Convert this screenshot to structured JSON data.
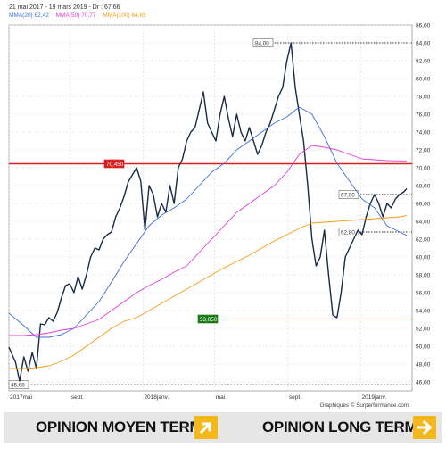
{
  "header": {
    "date_range": "21 mai 2017 - 19 mars 2019 - Dr : 67.66",
    "ma_legend": [
      {
        "name": "MMA(20)",
        "value": "62,42",
        "color": "#3b6fd8"
      },
      {
        "name": "MMA(50)",
        "value": "70,77",
        "color": "#e03fd6"
      },
      {
        "name": "MMA(100)",
        "value": "64,65",
        "color": "#f29d1a"
      }
    ]
  },
  "chart_data": {
    "type": "line",
    "ylim": [
      45,
      86
    ],
    "y_ticks": [
      "46,00",
      "48,00",
      "50,00",
      "52,00",
      "54,00",
      "56,00",
      "58,00",
      "60,00",
      "62,00",
      "64,00",
      "66,00",
      "68,00",
      "70,00",
      "72,00",
      "74,00",
      "76,00",
      "78,00",
      "80,00",
      "82,00",
      "84,00",
      "86,00"
    ],
    "y_tick_values": [
      46,
      48,
      50,
      52,
      54,
      56,
      58,
      60,
      62,
      64,
      66,
      68,
      70,
      72,
      74,
      76,
      78,
      80,
      82,
      84,
      86
    ],
    "x_ticks": [
      {
        "label": "2017mai",
        "date": "2017-05-21"
      },
      {
        "label": "sept.",
        "date": "2017-09-01"
      },
      {
        "label": "2018janv.",
        "date": "2018-01-01"
      },
      {
        "label": "mai",
        "date": "2018-05-01"
      },
      {
        "label": "sept.",
        "date": "2018-09-01"
      },
      {
        "label": "2019janv.",
        "date": "2019-01-01"
      }
    ],
    "x_range": [
      "2017-05-21",
      "2019-03-19"
    ],
    "grid": true,
    "series": [
      {
        "name": "Dr",
        "color": "#1a2a44",
        "x": [
          "2017-05-21",
          "2017-06-01",
          "2017-06-08",
          "2017-06-15",
          "2017-06-22",
          "2017-06-29",
          "2017-07-06",
          "2017-07-13",
          "2017-07-20",
          "2017-07-27",
          "2017-08-03",
          "2017-08-10",
          "2017-08-17",
          "2017-08-24",
          "2017-08-31",
          "2017-09-07",
          "2017-09-14",
          "2017-09-21",
          "2017-09-28",
          "2017-10-05",
          "2017-10-12",
          "2017-10-19",
          "2017-10-26",
          "2017-11-02",
          "2017-11-09",
          "2017-11-16",
          "2017-11-23",
          "2017-11-30",
          "2017-12-07",
          "2017-12-14",
          "2017-12-21",
          "2017-12-28",
          "2018-01-04",
          "2018-01-11",
          "2018-01-18",
          "2018-01-25",
          "2018-02-01",
          "2018-02-08",
          "2018-02-15",
          "2018-02-22",
          "2018-03-01",
          "2018-03-08",
          "2018-03-15",
          "2018-03-22",
          "2018-03-29",
          "2018-04-05",
          "2018-04-12",
          "2018-04-19",
          "2018-04-26",
          "2018-05-03",
          "2018-05-10",
          "2018-05-17",
          "2018-05-24",
          "2018-05-31",
          "2018-06-07",
          "2018-06-14",
          "2018-06-21",
          "2018-06-28",
          "2018-07-05",
          "2018-07-12",
          "2018-07-19",
          "2018-07-26",
          "2018-08-02",
          "2018-08-09",
          "2018-08-16",
          "2018-08-23",
          "2018-08-30",
          "2018-09-06",
          "2018-09-13",
          "2018-09-20",
          "2018-09-27",
          "2018-10-04",
          "2018-10-11",
          "2018-10-18",
          "2018-10-25",
          "2018-11-01",
          "2018-11-08",
          "2018-11-15",
          "2018-11-22",
          "2018-11-29",
          "2018-12-06",
          "2018-12-13",
          "2018-12-20",
          "2018-12-27",
          "2019-01-03",
          "2019-01-10",
          "2019-01-17",
          "2019-01-24",
          "2019-01-31",
          "2019-02-07",
          "2019-02-14",
          "2019-02-21",
          "2019-02-28",
          "2019-03-07",
          "2019-03-14",
          "2019-03-19"
        ],
        "values": [
          49.9,
          48.2,
          46.1,
          48.8,
          47.2,
          49.3,
          47.5,
          52.5,
          52.4,
          53.2,
          52.8,
          53.8,
          55.4,
          56.8,
          57.0,
          56.0,
          57.8,
          56.4,
          58.0,
          60.0,
          61.0,
          60.8,
          62.0,
          62.5,
          62.8,
          64.5,
          65.5,
          66.8,
          68.4,
          69.2,
          70.0,
          68.5,
          63.0,
          68.0,
          67.0,
          64.5,
          66.0,
          65.0,
          68.0,
          66.0,
          70.0,
          71.0,
          73.0,
          74.0,
          74.5,
          76.5,
          78.5,
          75.0,
          74.0,
          73.0,
          76.0,
          78.0,
          75.5,
          73.5,
          76.0,
          74.0,
          73.0,
          74.5,
          73.0,
          71.5,
          72.5,
          74.0,
          75.0,
          76.5,
          78.0,
          79.0,
          82.0,
          84.0,
          79.0,
          76.0,
          73.0,
          68.0,
          62.0,
          59.0,
          60.0,
          63.0,
          58.0,
          53.5,
          53.2,
          56.0,
          60.0,
          61.0,
          62.0,
          63.0,
          62.5,
          64.5,
          66.0,
          67.0,
          66.0,
          64.5,
          66.0,
          65.5,
          66.5,
          67.0,
          67.3,
          67.66
        ]
      },
      {
        "name": "MMA(20)",
        "color": "#3b6fd8",
        "x": [
          "2017-05-21",
          "2017-06-15",
          "2017-07-06",
          "2017-07-27",
          "2017-08-17",
          "2017-09-07",
          "2017-09-28",
          "2017-10-19",
          "2017-11-09",
          "2017-11-30",
          "2017-12-21",
          "2018-01-11",
          "2018-02-01",
          "2018-02-22",
          "2018-03-15",
          "2018-04-05",
          "2018-04-26",
          "2018-05-17",
          "2018-06-07",
          "2018-06-28",
          "2018-07-19",
          "2018-08-09",
          "2018-08-30",
          "2018-09-20",
          "2018-10-11",
          "2018-11-01",
          "2018-11-22",
          "2018-12-13",
          "2019-01-03",
          "2019-01-24",
          "2019-02-14",
          "2019-03-07",
          "2019-03-19"
        ],
        "values": [
          53.7,
          52.3,
          51.0,
          51.0,
          51.3,
          52.0,
          53.5,
          55.0,
          57.2,
          59.5,
          61.5,
          63.5,
          64.7,
          65.5,
          66.5,
          68.0,
          69.5,
          70.5,
          72.0,
          73.0,
          74.0,
          75.0,
          75.7,
          76.8,
          76.0,
          73.5,
          70.5,
          68.5,
          66.5,
          65.5,
          63.5,
          62.8,
          62.42
        ]
      },
      {
        "name": "MMA(50)",
        "color": "#e03fd6",
        "x": [
          "2017-05-21",
          "2017-06-15",
          "2017-07-06",
          "2017-07-27",
          "2017-08-17",
          "2017-09-07",
          "2017-09-28",
          "2017-10-19",
          "2017-11-09",
          "2017-11-30",
          "2017-12-21",
          "2018-01-11",
          "2018-02-01",
          "2018-02-22",
          "2018-03-15",
          "2018-04-05",
          "2018-04-26",
          "2018-05-17",
          "2018-06-07",
          "2018-06-28",
          "2018-07-19",
          "2018-08-09",
          "2018-08-30",
          "2018-09-20",
          "2018-10-11",
          "2018-11-01",
          "2018-11-22",
          "2018-12-13",
          "2019-01-03",
          "2019-01-24",
          "2019-02-14",
          "2019-03-07",
          "2019-03-19"
        ],
        "values": [
          51.2,
          51.2,
          51.3,
          51.5,
          51.8,
          52.0,
          52.5,
          53.0,
          54.0,
          55.0,
          56.0,
          56.8,
          57.5,
          58.3,
          59.0,
          60.5,
          62.0,
          63.5,
          65.0,
          66.0,
          67.0,
          68.0,
          69.5,
          71.5,
          72.5,
          72.3,
          72.0,
          71.5,
          71.0,
          70.9,
          70.8,
          70.77,
          70.77
        ]
      },
      {
        "name": "MMA(100)",
        "color": "#f29d1a",
        "x": [
          "2017-05-21",
          "2017-06-15",
          "2017-07-06",
          "2017-07-27",
          "2017-08-17",
          "2017-09-07",
          "2017-09-28",
          "2017-10-19",
          "2017-11-09",
          "2017-11-30",
          "2017-12-21",
          "2018-01-11",
          "2018-02-01",
          "2018-02-22",
          "2018-03-15",
          "2018-04-05",
          "2018-04-26",
          "2018-05-17",
          "2018-06-07",
          "2018-06-28",
          "2018-07-19",
          "2018-08-09",
          "2018-08-30",
          "2018-09-20",
          "2018-10-11",
          "2018-11-01",
          "2018-11-22",
          "2018-12-13",
          "2019-01-03",
          "2019-01-24",
          "2019-02-14",
          "2019-03-07",
          "2019-03-19"
        ],
        "values": [
          47.5,
          47.5,
          47.6,
          47.8,
          48.3,
          49.0,
          50.0,
          51.0,
          52.0,
          52.8,
          53.2,
          54.0,
          54.8,
          55.6,
          56.4,
          57.2,
          58.0,
          58.8,
          59.5,
          60.2,
          61.0,
          61.8,
          62.5,
          63.2,
          63.8,
          63.9,
          64.0,
          64.1,
          64.2,
          64.3,
          64.4,
          64.5,
          64.65
        ]
      }
    ],
    "horizontal_lines": [
      {
        "value": 70.45,
        "label": "70,450",
        "color": "#d81e1e",
        "style": "solid"
      },
      {
        "value": 53.05,
        "label": "53,050",
        "color": "#1a7a1a",
        "style": "solid"
      },
      {
        "value": 84.0,
        "label": "84,00",
        "color": "#333333",
        "style": "dotted"
      },
      {
        "value": 67.0,
        "label": "67,00",
        "color": "#333333",
        "style": "dotted"
      },
      {
        "value": 62.8,
        "label": "62,80",
        "color": "#333333",
        "style": "dotted"
      },
      {
        "value": 45.68,
        "label": "45,68",
        "color": "#333333",
        "style": "dashed"
      }
    ],
    "credit": "Graphiques © Surperformance.com"
  },
  "footer": {
    "opinion_mid": "OPINION MOYEN TERME",
    "opinion_mid_icon": "arrow-up-right-icon",
    "opinion_long": "OPINION LONG TERME",
    "opinion_long_icon": "arrow-right-icon",
    "icon_color": "#f5b81c"
  }
}
